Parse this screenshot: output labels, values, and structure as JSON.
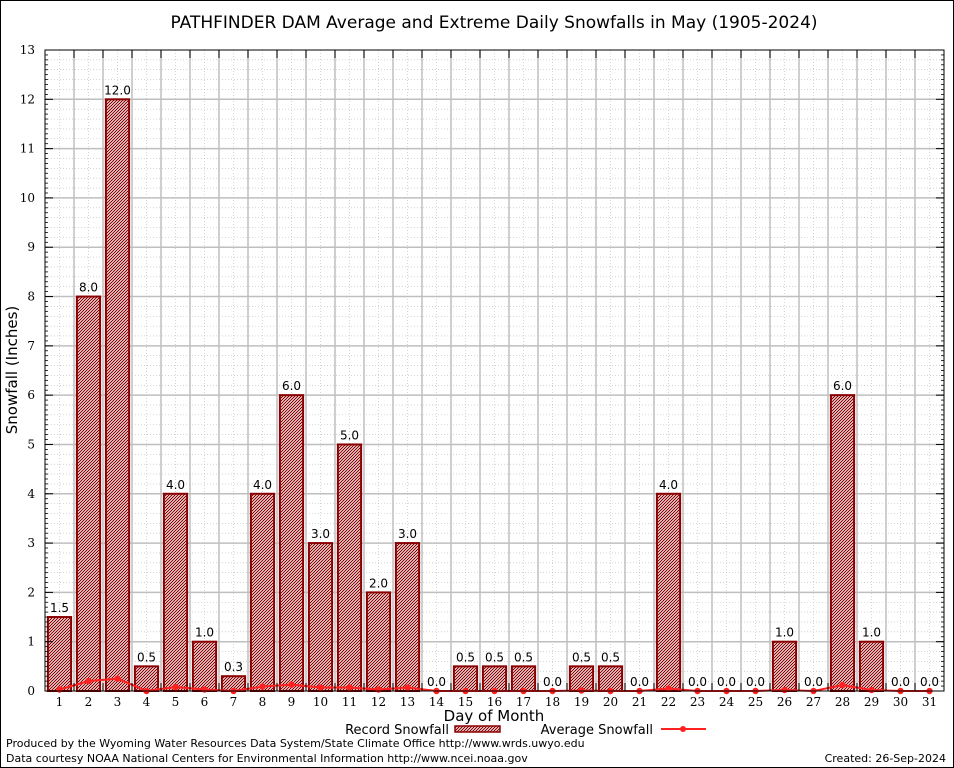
{
  "chart_data": {
    "type": "bar",
    "title": "PATHFINDER DAM Average and Extreme Daily Snowfalls in May (1905-2024)",
    "xlabel": "Day of Month",
    "ylabel": "Snowfall (Inches)",
    "ylim": [
      0,
      13
    ],
    "yticks": [
      "0",
      "1",
      "2",
      "3",
      "4",
      "5",
      "6",
      "7",
      "8",
      "9",
      "10",
      "11",
      "12",
      "13"
    ],
    "grid": true,
    "legend_position": "bottom",
    "categories": [
      "1",
      "2",
      "3",
      "4",
      "5",
      "6",
      "7",
      "8",
      "9",
      "10",
      "11",
      "12",
      "13",
      "14",
      "15",
      "16",
      "17",
      "18",
      "19",
      "20",
      "21",
      "22",
      "23",
      "24",
      "25",
      "26",
      "27",
      "28",
      "29",
      "30",
      "31"
    ],
    "series": [
      {
        "name": "Record Snowfall",
        "type": "bar",
        "color": "#8b0000",
        "values": [
          1.5,
          8.0,
          12.0,
          0.5,
          4.0,
          1.0,
          0.3,
          4.0,
          6.0,
          3.0,
          5.0,
          2.0,
          3.0,
          0.0,
          0.5,
          0.5,
          0.5,
          0.0,
          0.5,
          0.5,
          0.0,
          4.0,
          0.0,
          0.0,
          0.0,
          1.0,
          0.0,
          6.0,
          1.0,
          0.0,
          0.0
        ],
        "labels": [
          "1.5",
          "8.0",
          "12.0",
          "0.5",
          "4.0",
          "1.0",
          "0.3",
          "4.0",
          "6.0",
          "3.0",
          "5.0",
          "2.0",
          "3.0",
          "0.0",
          "0.5",
          "0.5",
          "0.5",
          "0.0",
          "0.5",
          "0.5",
          "0.0",
          "4.0",
          "0.0",
          "0.0",
          "0.0",
          "1.0",
          "0.0",
          "6.0",
          "1.0",
          "0.0",
          "0.0"
        ]
      },
      {
        "name": "Average Snowfall",
        "type": "line",
        "color": "#ff2020",
        "values": [
          0.03,
          0.2,
          0.25,
          0.0,
          0.08,
          0.03,
          0.0,
          0.09,
          0.13,
          0.07,
          0.07,
          0.03,
          0.07,
          0.0,
          0.0,
          0.0,
          0.0,
          0.0,
          0.01,
          0.0,
          0.0,
          0.05,
          0.0,
          0.0,
          0.0,
          0.02,
          0.0,
          0.12,
          0.02,
          0.0,
          0.0
        ]
      }
    ]
  },
  "footer": {
    "produced_by": "Produced by the Wyoming Water Resources Data System/State Climate Office http://www.wrds.uwyo.edu",
    "data_courtesy": "Data courtesy NOAA National Centers for Environmental Information http://www.ncei.noaa.gov",
    "created": "Created: 26-Sep-2024"
  }
}
